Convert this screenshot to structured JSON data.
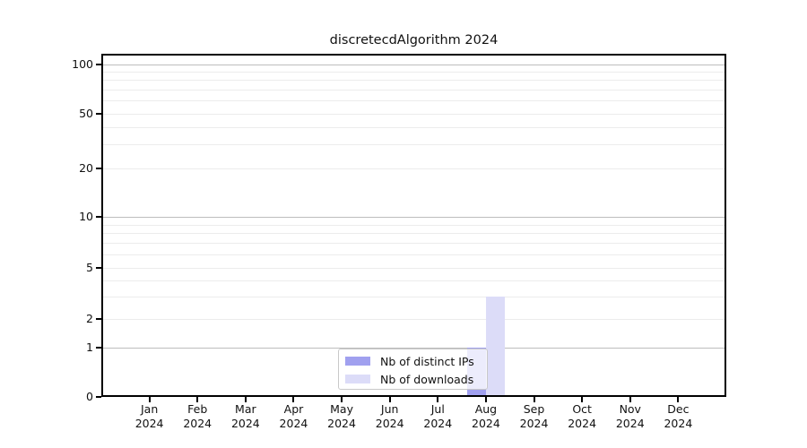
{
  "chart_data": {
    "type": "bar",
    "title": "discretecdAlgorithm 2024",
    "xlabel": "",
    "ylabel": "",
    "year": "2024",
    "categories": [
      "Jan",
      "Feb",
      "Mar",
      "Apr",
      "May",
      "Jun",
      "Jul",
      "Aug",
      "Sep",
      "Oct",
      "Nov",
      "Dec"
    ],
    "series": [
      {
        "name": "Nb of distinct IPs",
        "color": "#a0a0ef",
        "values": [
          0,
          0,
          0,
          0,
          0,
          0,
          0,
          1,
          0,
          0,
          0,
          0
        ]
      },
      {
        "name": "Nb of downloads",
        "color": "#dcdcf8",
        "values": [
          0,
          0,
          0,
          0,
          0,
          0,
          0,
          3,
          0,
          0,
          0,
          0
        ]
      }
    ],
    "yscale": "log1p-like",
    "ylim": [
      0,
      116
    ],
    "yticks": [
      0,
      1,
      2,
      5,
      10,
      20,
      50,
      100
    ],
    "gridlines": {
      "major": [
        1,
        10,
        100
      ],
      "minor": [
        2,
        3,
        4,
        5,
        6,
        7,
        8,
        9,
        20,
        30,
        40,
        50,
        60,
        70,
        80,
        90
      ]
    },
    "legend_position": "bottom-center",
    "colors": {
      "axis": "#000000",
      "grid_major": "#bdbdbd",
      "grid_minor": "#ececec",
      "legend_border": "#c9c9c9"
    }
  }
}
